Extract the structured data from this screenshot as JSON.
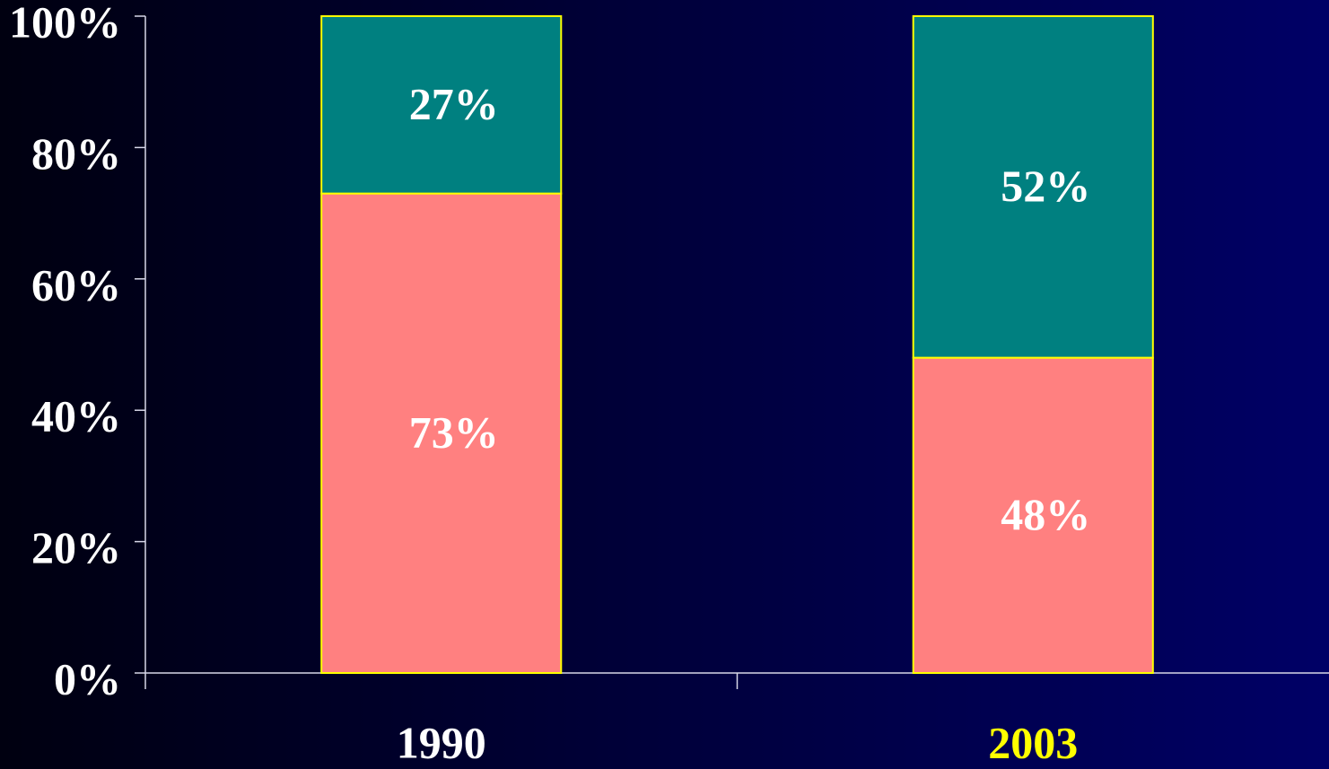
{
  "chart_data": {
    "type": "stacked_bar",
    "categories": [
      "1990",
      "2003"
    ],
    "category_colors": [
      "#ffffff",
      "#ffff00"
    ],
    "series": [
      {
        "color": "#ff8080",
        "values": [
          73,
          48
        ],
        "value_labels": [
          "73%",
          "48%"
        ]
      },
      {
        "color": "#008080",
        "values": [
          27,
          52
        ],
        "value_labels": [
          "27%",
          "52%"
        ]
      }
    ],
    "bar_edge_color": "#ffff00",
    "ylim": [
      0,
      100
    ],
    "yticks": [
      {
        "value": 0,
        "label": "0%"
      },
      {
        "value": 20,
        "label": "20%"
      },
      {
        "value": 40,
        "label": "40%"
      },
      {
        "value": 60,
        "label": "60%"
      },
      {
        "value": 80,
        "label": "80%"
      },
      {
        "value": 100,
        "label": "100%"
      }
    ],
    "grid": false
  }
}
